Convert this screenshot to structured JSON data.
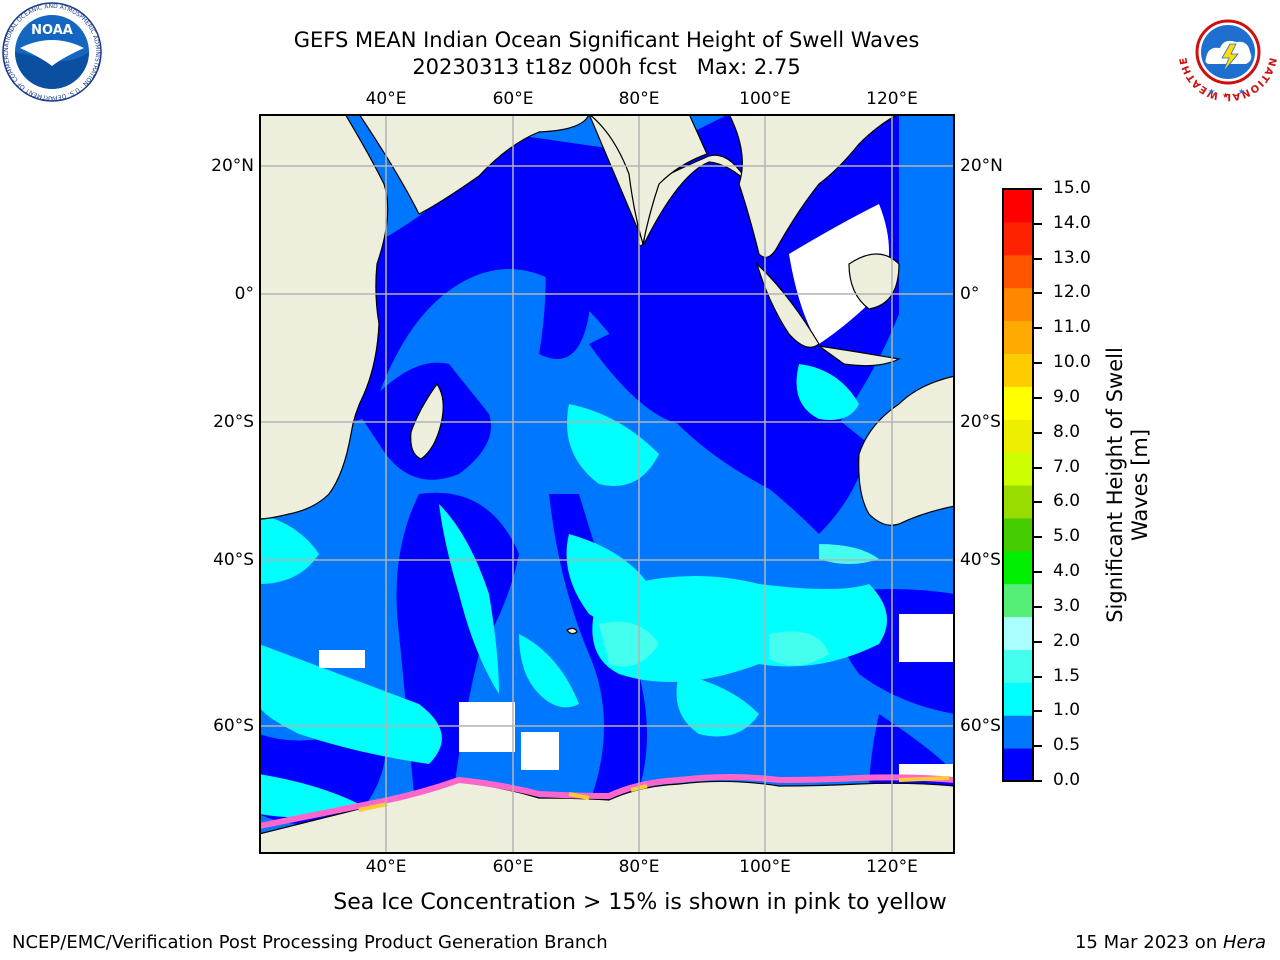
{
  "title": {
    "line1": "GEFS MEAN Indian Ocean Significant Height of Swell Waves",
    "line2": "20230313 t18z 000h fcst",
    "max": "Max: 2.75"
  },
  "map": {
    "lon_labels": [
      "40°E",
      "60°E",
      "80°E",
      "100°E",
      "120°E"
    ],
    "lat_labels": [
      "20°N",
      "0°",
      "20°S",
      "40°S",
      "60°S"
    ],
    "extent": {
      "lon_min": 20,
      "lon_max": 130,
      "lat_min": -72,
      "lat_max": 28
    },
    "colors": {
      "land": "#eeeedd",
      "grid": "#b4b4b4",
      "ice": "#ff66cc",
      "ice_high": "#ffcc33"
    }
  },
  "colorbar": {
    "label_line1": "Significant Height of Swell",
    "label_line2": "Waves [m]",
    "ticks": [
      "0.0",
      "0.5",
      "1.0",
      "1.5",
      "2.0",
      "3.0",
      "4.0",
      "5.0",
      "6.0",
      "7.0",
      "8.0",
      "9.0",
      "10.0",
      "11.0",
      "12.0",
      "13.0",
      "14.0",
      "15.0"
    ],
    "colors": [
      "#0000ff",
      "#0077ff",
      "#00ffff",
      "#44ffee",
      "#aaffff",
      "#55ee77",
      "#00ee00",
      "#44cc00",
      "#99dd00",
      "#ccff00",
      "#eeee00",
      "#ffff00",
      "#ffcc00",
      "#ffaa00",
      "#ff8800",
      "#ff5500",
      "#ff2200",
      "#ff0000"
    ]
  },
  "caption": "Sea Ice Concentration > 15% is shown in pink to yellow",
  "footer": {
    "left": "NCEP/EMC/Verification Post Processing Product Generation Branch",
    "right_prefix": "15 Mar 2023 on ",
    "right_host": "Hera"
  },
  "logos": {
    "noaa": {
      "text": "NOAA",
      "ring": "NATIONAL OCEANIC AND ATMOSPHERIC ADMINISTRATION · U.S. DEPARTMENT OF COMMERCE"
    },
    "nws": {
      "ring": "NATIONAL WEATHER SERVICE"
    }
  }
}
